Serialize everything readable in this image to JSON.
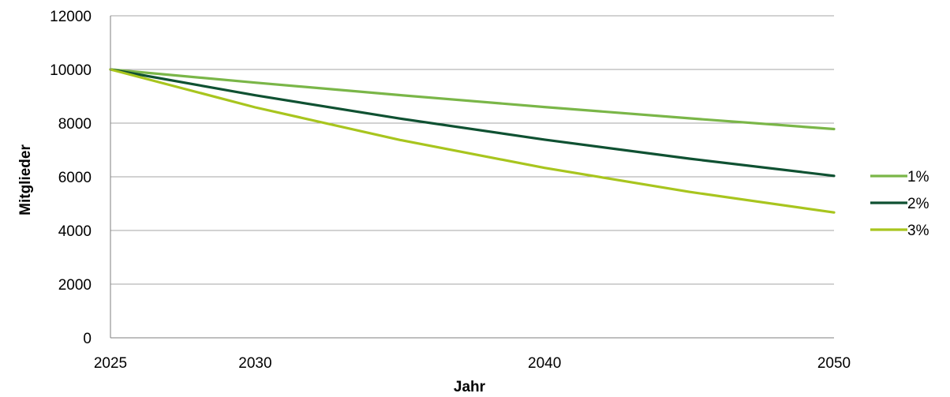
{
  "chart_data": {
    "type": "line",
    "xlabel": "Jahr",
    "ylabel": "Mitglieder",
    "xlim": [
      2025,
      2050
    ],
    "ylim": [
      0,
      12000
    ],
    "x_ticks": [
      2025,
      2030,
      2040,
      2050
    ],
    "y_ticks": [
      0,
      2000,
      4000,
      6000,
      8000,
      10000,
      12000
    ],
    "grid": "horizontal",
    "legend_position": "right",
    "x": [
      2025,
      2030,
      2035,
      2040,
      2045,
      2050
    ],
    "series": [
      {
        "name": "1%",
        "color": "#7ab648",
        "values": [
          10000,
          9510,
          9044,
          8601,
          8179,
          7778
        ]
      },
      {
        "name": "2%",
        "color": "#0f5132",
        "values": [
          10000,
          9039,
          8171,
          7386,
          6676,
          6035
        ]
      },
      {
        "name": "3%",
        "color": "#a8c51e",
        "values": [
          10000,
          8587,
          7374,
          6333,
          5438,
          4670
        ]
      }
    ]
  }
}
